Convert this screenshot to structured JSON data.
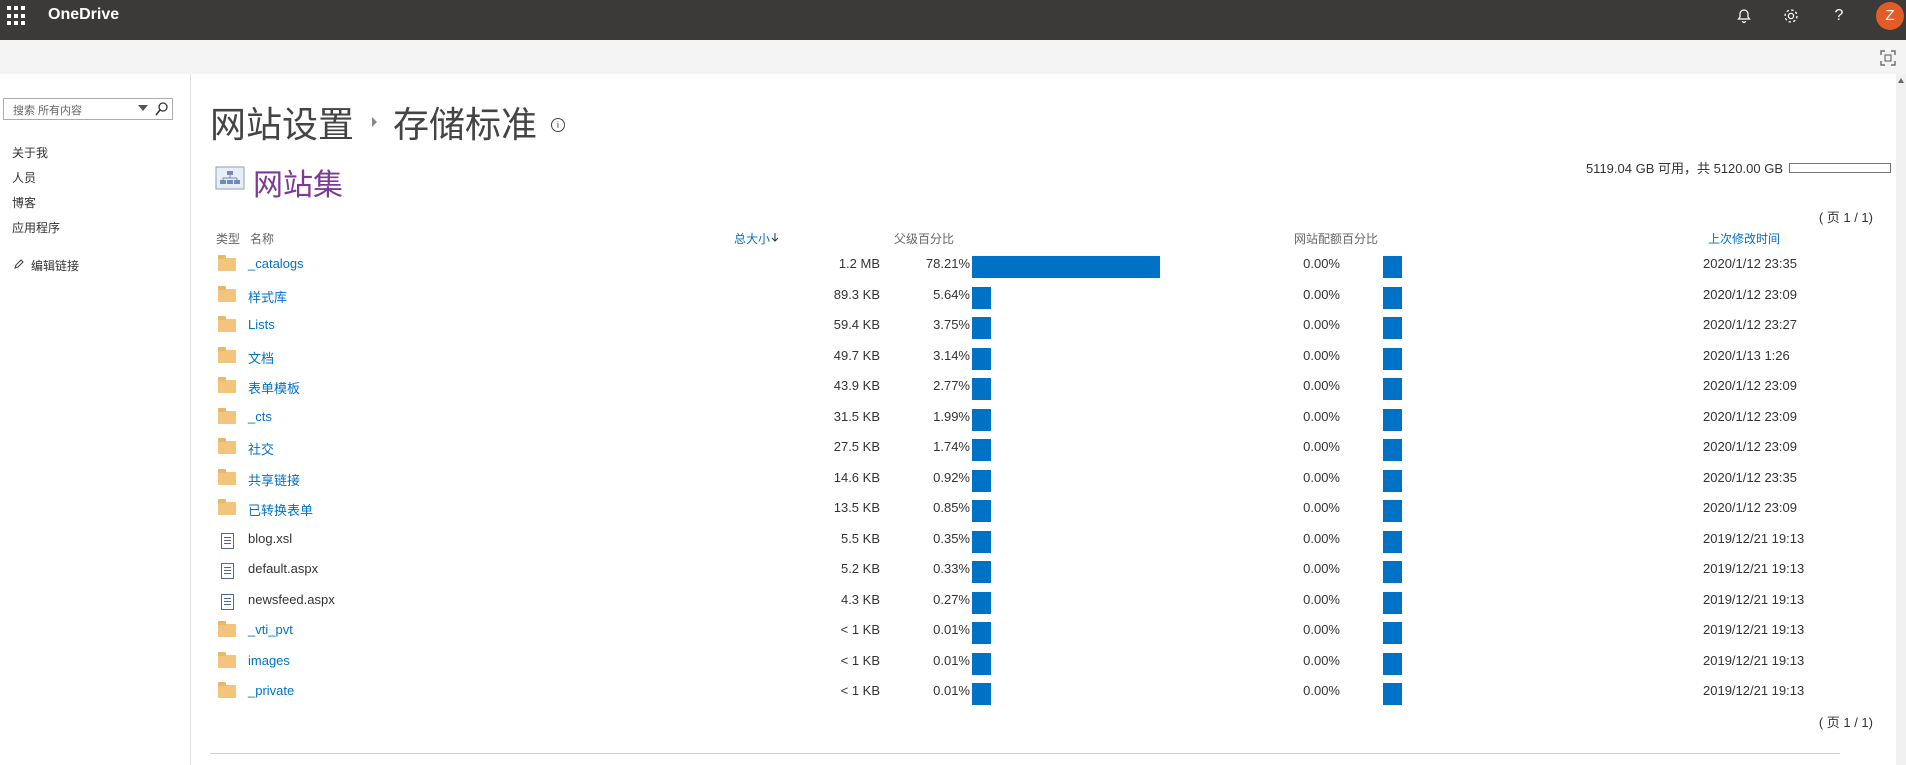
{
  "suite": {
    "app_name": "OneDrive",
    "avatar_initial": "Z",
    "avatar_color": "#e35c28"
  },
  "search": {
    "placeholder": "搜索 所有内容"
  },
  "leftnav": {
    "items": [
      "关于我",
      "人员",
      "博客",
      "应用程序"
    ],
    "edit_links": "编辑链接"
  },
  "title": {
    "part1": "网站设置",
    "part2": "存储标准",
    "info_glyph": "i"
  },
  "site_collection": {
    "label": "网站集"
  },
  "usage": {
    "text": "5119.04 GB 可用，共 5120.00 GB",
    "used_fraction": 0.0002
  },
  "pager": {
    "top": "( 页 1 / 1)",
    "bottom": "( 页 1 / 1)"
  },
  "columns": {
    "type": "类型",
    "name": "名称",
    "size": "总大小",
    "parent_pct": "父级百分比",
    "quota_pct": "网站配额百分比",
    "modified": "上次修改时间"
  },
  "rows": [
    {
      "kind": "folder",
      "name": "_catalogs",
      "size": "1.2 MB",
      "pct": "78.21%",
      "pct_value": 78.21,
      "qpct": "0.00%",
      "modified": "2020/1/12 23:35"
    },
    {
      "kind": "folder",
      "name": "样式库",
      "size": "89.3 KB",
      "pct": "5.64%",
      "pct_value": 5.64,
      "qpct": "0.00%",
      "modified": "2020/1/12 23:09"
    },
    {
      "kind": "folder",
      "name": "Lists",
      "size": "59.4 KB",
      "pct": "3.75%",
      "pct_value": 3.75,
      "qpct": "0.00%",
      "modified": "2020/1/12 23:27"
    },
    {
      "kind": "folder",
      "name": "文档",
      "size": "49.7 KB",
      "pct": "3.14%",
      "pct_value": 3.14,
      "qpct": "0.00%",
      "modified": "2020/1/13 1:26"
    },
    {
      "kind": "folder",
      "name": "表单模板",
      "size": "43.9 KB",
      "pct": "2.77%",
      "pct_value": 2.77,
      "qpct": "0.00%",
      "modified": "2020/1/12 23:09"
    },
    {
      "kind": "folder",
      "name": "_cts",
      "size": "31.5 KB",
      "pct": "1.99%",
      "pct_value": 1.99,
      "qpct": "0.00%",
      "modified": "2020/1/12 23:09"
    },
    {
      "kind": "folder",
      "name": "社交",
      "size": "27.5 KB",
      "pct": "1.74%",
      "pct_value": 1.74,
      "qpct": "0.00%",
      "modified": "2020/1/12 23:09"
    },
    {
      "kind": "folder",
      "name": "共享链接",
      "size": "14.6 KB",
      "pct": "0.92%",
      "pct_value": 0.92,
      "qpct": "0.00%",
      "modified": "2020/1/12 23:35"
    },
    {
      "kind": "folder",
      "name": "已转换表单",
      "size": "13.5 KB",
      "pct": "0.85%",
      "pct_value": 0.85,
      "qpct": "0.00%",
      "modified": "2020/1/12 23:09"
    },
    {
      "kind": "file",
      "name": "blog.xsl",
      "size": "5.5 KB",
      "pct": "0.35%",
      "pct_value": 0.35,
      "qpct": "0.00%",
      "modified": "2019/12/21 19:13"
    },
    {
      "kind": "file",
      "name": "default.aspx",
      "size": "5.2 KB",
      "pct": "0.33%",
      "pct_value": 0.33,
      "qpct": "0.00%",
      "modified": "2019/12/21 19:13"
    },
    {
      "kind": "file",
      "name": "newsfeed.aspx",
      "size": "4.3 KB",
      "pct": "0.27%",
      "pct_value": 0.27,
      "qpct": "0.00%",
      "modified": "2019/12/21 19:13"
    },
    {
      "kind": "folder",
      "name": "_vti_pvt",
      "size": "< 1 KB",
      "pct": "0.01%",
      "pct_value": 0.01,
      "qpct": "0.00%",
      "modified": "2019/12/21 19:13"
    },
    {
      "kind": "folder",
      "name": "images",
      "size": "< 1 KB",
      "pct": "0.01%",
      "pct_value": 0.01,
      "qpct": "0.00%",
      "modified": "2019/12/21 19:13"
    },
    {
      "kind": "folder",
      "name": "_private",
      "size": "< 1 KB",
      "pct": "0.01%",
      "pct_value": 0.01,
      "qpct": "0.00%",
      "modified": "2019/12/21 19:13"
    }
  ],
  "colors": {
    "accent": "#0072c6",
    "suitebar": "#3b3a39",
    "site_collection_title": "#7a3c93"
  },
  "icons": [
    "app-launcher-icon",
    "bell-icon",
    "gear-icon",
    "help-icon",
    "focus-mode-icon",
    "search-icon",
    "pencil-icon",
    "folder-icon",
    "file-icon",
    "info-icon",
    "sort-down-icon"
  ]
}
